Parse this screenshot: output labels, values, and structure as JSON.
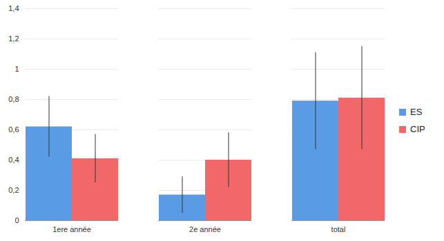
{
  "chart_data": {
    "type": "bar",
    "categories": [
      "1ere année",
      "2e année",
      "total"
    ],
    "series": [
      {
        "name": "ES",
        "color": "#5a9be6",
        "values": [
          0.62,
          0.17,
          0.79
        ],
        "error_low": [
          0.42,
          0.05,
          0.47
        ],
        "error_high": [
          0.82,
          0.29,
          1.11
        ]
      },
      {
        "name": "CIP",
        "color": "#f26868",
        "values": [
          0.41,
          0.4,
          0.81
        ],
        "error_low": [
          0.25,
          0.22,
          0.47
        ],
        "error_high": [
          0.57,
          0.58,
          1.15
        ]
      }
    ],
    "ylim": [
      0,
      1.4
    ],
    "yticks": [
      0,
      {
        "value": 0.2,
        "label": "0,2"
      },
      {
        "value": 0.4,
        "label": "0,4"
      },
      {
        "value": 0.6,
        "label": "0,6"
      },
      {
        "value": 0.8,
        "label": "0,8"
      },
      1,
      {
        "value": 1.2,
        "label": "1,2"
      },
      {
        "value": 1.4,
        "label": "1,4"
      }
    ],
    "grid": true,
    "legend": "right"
  }
}
